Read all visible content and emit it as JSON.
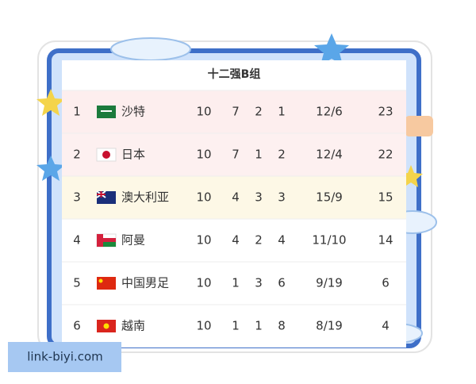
{
  "title": "十二强B组",
  "rows": [
    [
      1,
      "沙特",
      10,
      7,
      2,
      1,
      "12/6",
      23
    ],
    [
      2,
      "日本",
      10,
      7,
      1,
      2,
      "12/4",
      22
    ],
    [
      3,
      "澳大利亚",
      10,
      4,
      3,
      3,
      "15/9",
      15
    ],
    [
      4,
      "阿曼",
      10,
      4,
      2,
      4,
      "11/10",
      14
    ],
    [
      5,
      "中国男足",
      10,
      1,
      3,
      6,
      "9/19",
      6
    ],
    [
      6,
      "越南",
      10,
      1,
      1,
      8,
      "8/19",
      4
    ]
  ],
  "watermark": "link-biyi.com"
}
